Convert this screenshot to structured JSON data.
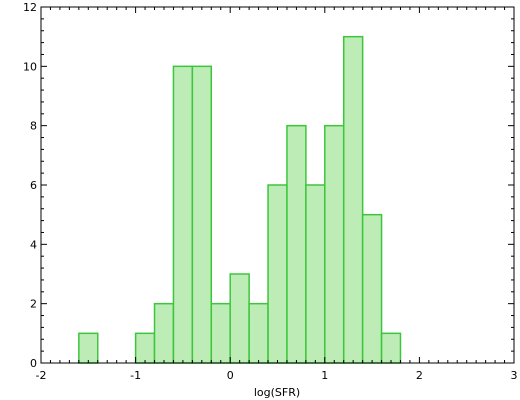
{
  "chart_data": {
    "type": "bar",
    "xlabel": "log(SFR)",
    "ylabel": "",
    "title": "",
    "xlim": [
      -2,
      3
    ],
    "ylim": [
      0,
      12
    ],
    "x_ticks": [
      -2,
      -1,
      0,
      1,
      2,
      3
    ],
    "y_ticks": [
      0,
      2,
      4,
      6,
      8,
      10,
      12
    ],
    "bin_width": 0.2,
    "bins": [
      {
        "x0": -1.6,
        "x1": -1.4,
        "count": 1
      },
      {
        "x0": -1.0,
        "x1": -0.8,
        "count": 1
      },
      {
        "x0": -0.8,
        "x1": -0.6,
        "count": 2
      },
      {
        "x0": -0.6,
        "x1": -0.4,
        "count": 10
      },
      {
        "x0": -0.4,
        "x1": -0.2,
        "count": 10
      },
      {
        "x0": -0.2,
        "x1": 0.0,
        "count": 2
      },
      {
        "x0": 0.0,
        "x1": 0.2,
        "count": 3
      },
      {
        "x0": 0.2,
        "x1": 0.4,
        "count": 2
      },
      {
        "x0": 0.4,
        "x1": 0.6,
        "count": 6
      },
      {
        "x0": 0.6,
        "x1": 0.8,
        "count": 8
      },
      {
        "x0": 0.8,
        "x1": 1.0,
        "count": 6
      },
      {
        "x0": 1.0,
        "x1": 1.2,
        "count": 8
      },
      {
        "x0": 1.2,
        "x1": 1.4,
        "count": 11
      },
      {
        "x0": 1.4,
        "x1": 1.6,
        "count": 5
      },
      {
        "x0": 1.6,
        "x1": 1.8,
        "count": 1
      }
    ],
    "grid": false,
    "colors": {
      "bar_fill": "#bdecb6",
      "bar_stroke": "#3cc63c",
      "axis": "#000000"
    }
  }
}
